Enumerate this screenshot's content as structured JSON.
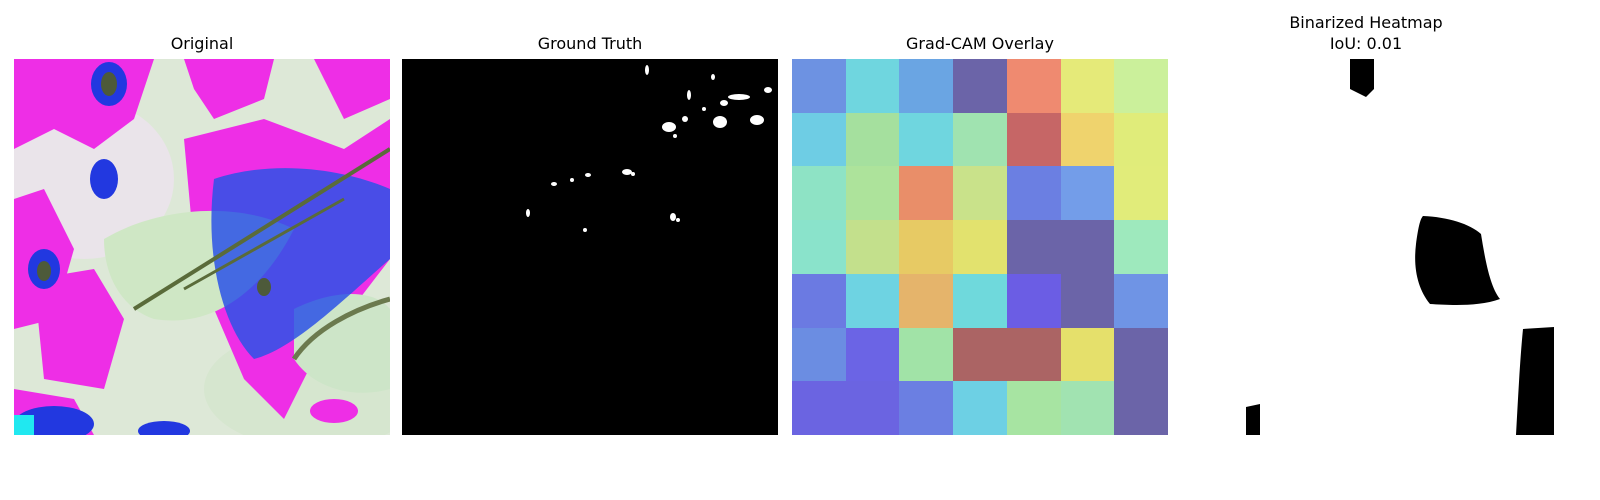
{
  "panels": {
    "original": {
      "title": "Original"
    },
    "groundtruth": {
      "title": "Ground Truth"
    },
    "gradcam": {
      "title": "Grad-CAM Overlay"
    },
    "binarized": {
      "title": "Binarized Heatmap",
      "subtitle": "IoU: 0.01"
    }
  },
  "gradcam_grid": [
    [
      "#6d92e2",
      "#6fd6df",
      "#6aa5e3",
      "#6b64a8",
      "#ef8a70",
      "#e5ea79",
      "#cbf09b"
    ],
    [
      "#6ecde4",
      "#a5e09e",
      "#6fd6df",
      "#a0e3b0",
      "#c66666",
      "#efd36d",
      "#e0ec7a"
    ],
    [
      "#8ee3c5",
      "#ade39b",
      "#e98e69",
      "#c9e28a",
      "#6b7fe2",
      "#739de9",
      "#e1ec7a"
    ],
    [
      "#8ae3cb",
      "#c3e08c",
      "#e7ca64",
      "#e2e26e",
      "#6b64a8",
      "#6b64a8",
      "#9ee9bd"
    ],
    [
      "#6b7ae2",
      "#6ed3e2",
      "#e5b46b",
      "#6fd9dc",
      "#6b5de4",
      "#6b64a8",
      "#6f94e5"
    ],
    [
      "#6b8de2",
      "#6b64e5",
      "#a1e3a7",
      "#ab6464",
      "#ab6464",
      "#e5e06b",
      "#6b64a8"
    ],
    [
      "#6b64e1",
      "#6b64e1",
      "#6b7fe2",
      "#6dd0e4",
      "#a7e4a2",
      "#a1e3b1",
      "#6b64a8"
    ]
  ]
}
